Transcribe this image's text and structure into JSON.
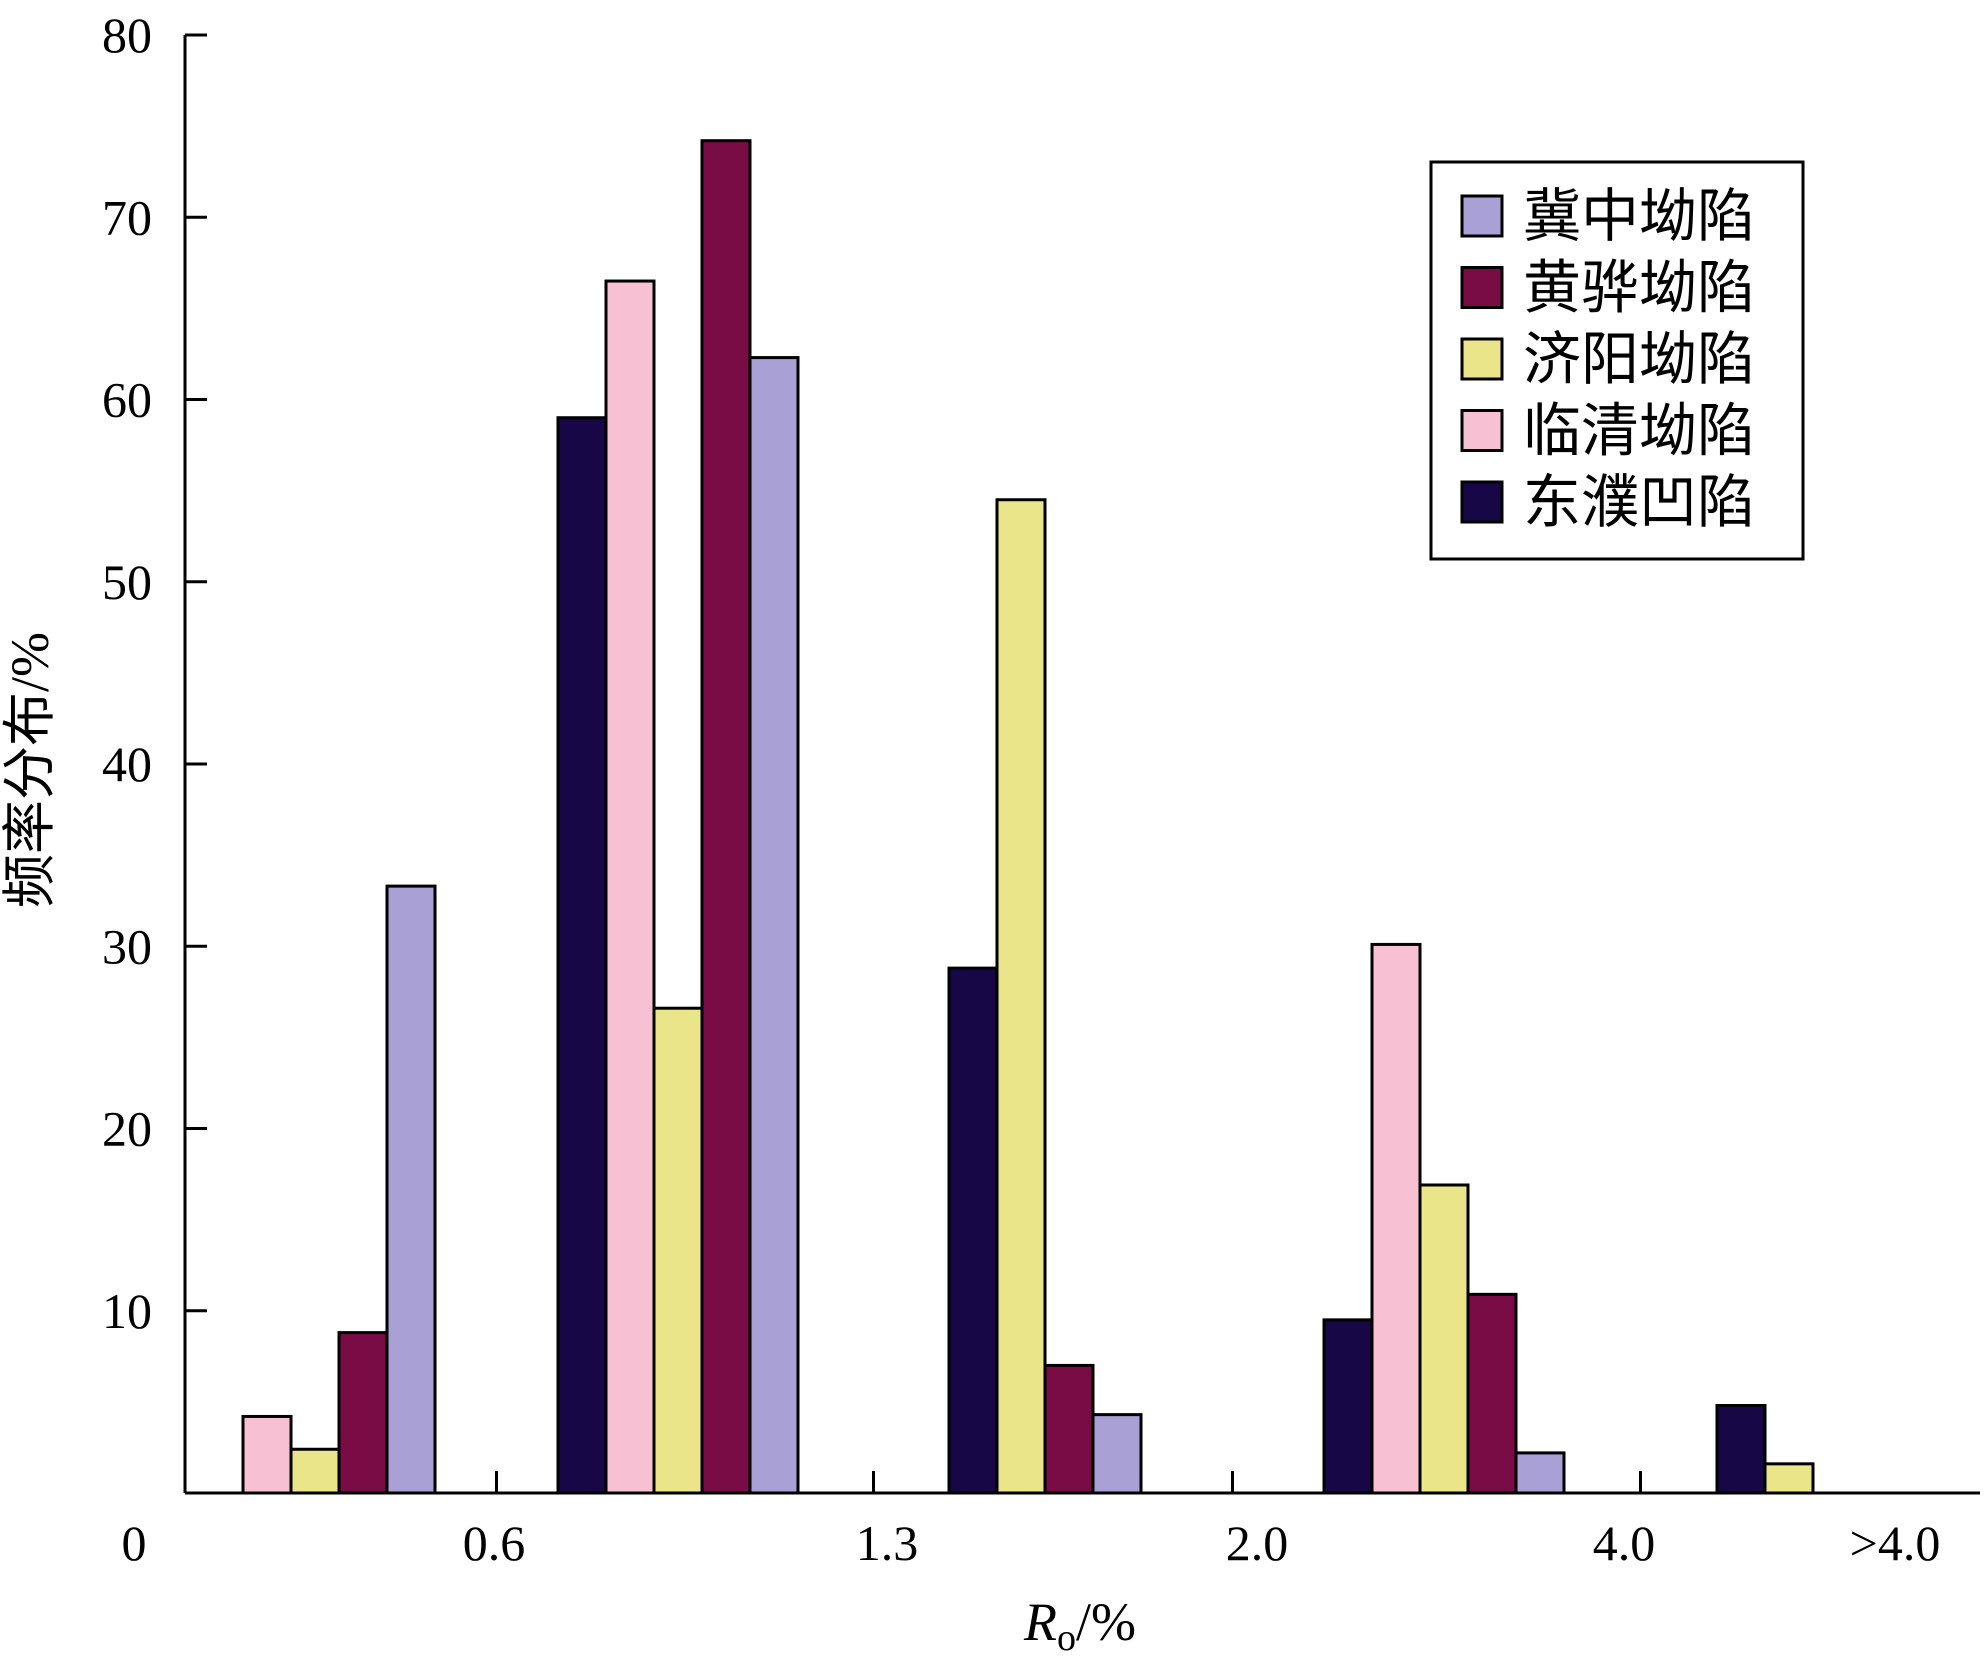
{
  "colors": {
    "jizhong": "#a9a0d6",
    "huanghua": "#7a0c45",
    "jiyang": "#ebe58a",
    "linqing": "#f7c1d3",
    "dongpu": "#170746"
  },
  "chart_data": {
    "type": "bar",
    "title": "",
    "xlabel_main": "R",
    "xlabel_sub": "o",
    "xlabel_unit": "/%",
    "ylabel": "频率分布/%",
    "ylim": [
      0,
      80
    ],
    "yticks": [
      0,
      10,
      20,
      30,
      40,
      50,
      60,
      70,
      80
    ],
    "x_tick_labels": [
      "0",
      "0.6",
      "1.3",
      "2.0",
      "4.0",
      ">4.0"
    ],
    "groups": [
      {
        "bars": [
          {
            "series": "linqing",
            "value": 4.2
          },
          {
            "series": "jiyang",
            "value": 2.4
          },
          {
            "series": "huanghua",
            "value": 8.8
          },
          {
            "series": "jizhong",
            "value": 33.3
          }
        ]
      },
      {
        "bars": [
          {
            "series": "dongpu",
            "value": 59.0
          },
          {
            "series": "linqing",
            "value": 66.5
          },
          {
            "series": "jiyang",
            "value": 26.6
          },
          {
            "series": "huanghua",
            "value": 74.2
          },
          {
            "series": "jizhong",
            "value": 62.3
          }
        ]
      },
      {
        "bars": [
          {
            "series": "dongpu",
            "value": 28.8
          },
          {
            "series": "jiyang",
            "value": 54.5
          },
          {
            "series": "huanghua",
            "value": 7.0
          },
          {
            "series": "jizhong",
            "value": 4.3
          }
        ]
      },
      {
        "bars": [
          {
            "series": "dongpu",
            "value": 9.5
          },
          {
            "series": "linqing",
            "value": 30.1
          },
          {
            "series": "jiyang",
            "value": 16.9
          },
          {
            "series": "huanghua",
            "value": 10.9
          },
          {
            "series": "jizhong",
            "value": 2.2
          }
        ]
      },
      {
        "bars": [
          {
            "series": "dongpu",
            "value": 4.8
          },
          {
            "series": "jiyang",
            "value": 1.6
          }
        ]
      }
    ],
    "series": [
      {
        "key": "jizhong",
        "name": "冀中坳陷"
      },
      {
        "key": "huanghua",
        "name": "黄骅坳陷"
      },
      {
        "key": "jiyang",
        "name": "济阳坳陷"
      },
      {
        "key": "linqing",
        "name": "临清坳陷"
      },
      {
        "key": "dongpu",
        "name": "东濮凹陷"
      }
    ],
    "legend_position": "top-right",
    "grid": false
  }
}
